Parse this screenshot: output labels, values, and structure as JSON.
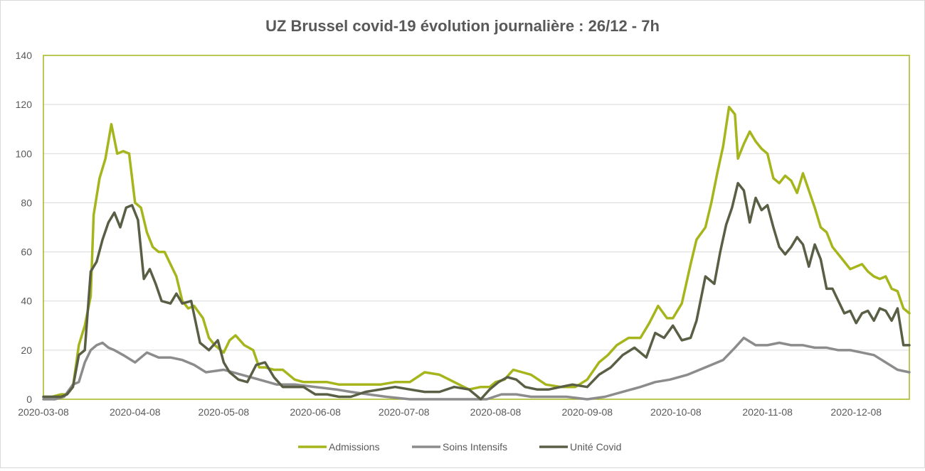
{
  "chart_data": {
    "type": "line",
    "title": "UZ Brussel covid-19 évolution journalière : 26/12 - 7h",
    "xlabel": "",
    "ylabel": "",
    "xlim": [
      "2020-03-08",
      "2020-12-26"
    ],
    "ylim": [
      0,
      140
    ],
    "y_ticks": [
      "0",
      "20",
      "40",
      "60",
      "80",
      "100",
      "120",
      "140"
    ],
    "x_ticks": [
      "2020-03-08",
      "2020-04-08",
      "2020-05-08",
      "2020-06-08",
      "2020-07-08",
      "2020-08-08",
      "2020-09-08",
      "2020-10-08",
      "2020-11-08",
      "2020-12-08"
    ],
    "grid": "horizontal",
    "legend_position": "bottom",
    "series": [
      {
        "name": "Admissions",
        "color": "#a5b51b",
        "x": [
          "2020-03-08",
          "2020-03-11",
          "2020-03-14",
          "2020-03-16",
          "2020-03-18",
          "2020-03-20",
          "2020-03-22",
          "2020-03-24",
          "2020-03-25",
          "2020-03-27",
          "2020-03-29",
          "2020-03-31",
          "2020-04-02",
          "2020-04-04",
          "2020-04-06",
          "2020-04-08",
          "2020-04-10",
          "2020-04-12",
          "2020-04-14",
          "2020-04-16",
          "2020-04-18",
          "2020-04-20",
          "2020-04-22",
          "2020-04-24",
          "2020-04-26",
          "2020-04-28",
          "2020-05-01",
          "2020-05-03",
          "2020-05-05",
          "2020-05-08",
          "2020-05-10",
          "2020-05-12",
          "2020-05-15",
          "2020-05-18",
          "2020-05-20",
          "2020-05-22",
          "2020-05-25",
          "2020-05-28",
          "2020-06-01",
          "2020-06-04",
          "2020-06-08",
          "2020-06-12",
          "2020-06-16",
          "2020-06-20",
          "2020-06-25",
          "2020-06-30",
          "2020-07-05",
          "2020-07-10",
          "2020-07-15",
          "2020-07-20",
          "2020-07-25",
          "2020-07-30",
          "2020-08-03",
          "2020-08-06",
          "2020-08-08",
          "2020-08-11",
          "2020-08-14",
          "2020-08-17",
          "2020-08-20",
          "2020-08-25",
          "2020-08-30",
          "2020-09-04",
          "2020-09-08",
          "2020-09-12",
          "2020-09-15",
          "2020-09-18",
          "2020-09-22",
          "2020-09-26",
          "2020-09-29",
          "2020-10-02",
          "2020-10-05",
          "2020-10-07",
          "2020-10-10",
          "2020-10-13",
          "2020-10-15",
          "2020-10-18",
          "2020-10-20",
          "2020-10-22",
          "2020-10-24",
          "2020-10-26",
          "2020-10-28",
          "2020-10-29",
          "2020-10-31",
          "2020-11-02",
          "2020-11-04",
          "2020-11-06",
          "2020-11-08",
          "2020-11-10",
          "2020-11-12",
          "2020-11-14",
          "2020-11-16",
          "2020-11-18",
          "2020-11-20",
          "2020-11-22",
          "2020-11-24",
          "2020-11-26",
          "2020-11-28",
          "2020-11-30",
          "2020-12-02",
          "2020-12-04",
          "2020-12-06",
          "2020-12-08",
          "2020-12-10",
          "2020-12-12",
          "2020-12-14",
          "2020-12-16",
          "2020-12-18",
          "2020-12-20",
          "2020-12-22",
          "2020-12-24",
          "2020-12-26"
        ],
        "values": [
          1,
          1,
          2,
          2,
          5,
          22,
          30,
          42,
          75,
          90,
          98,
          112,
          100,
          101,
          100,
          80,
          78,
          68,
          62,
          60,
          60,
          55,
          50,
          40,
          37,
          38,
          33,
          25,
          22,
          19,
          24,
          26,
          22,
          20,
          13,
          13,
          12,
          12,
          8,
          7,
          7,
          7,
          6,
          6,
          6,
          6,
          7,
          7,
          11,
          10,
          7,
          4,
          5,
          5,
          7,
          8,
          12,
          11,
          10,
          6,
          5,
          5,
          8,
          15,
          18,
          22,
          25,
          25,
          31,
          38,
          33,
          33,
          39,
          55,
          65,
          70,
          80,
          92,
          103,
          119,
          116,
          98,
          104,
          109,
          105,
          102,
          100,
          90,
          88,
          91,
          89,
          84,
          92,
          85,
          78,
          70,
          68,
          62,
          59,
          56,
          53,
          54,
          55,
          52,
          50,
          49,
          50,
          45,
          44,
          37,
          35
        ]
      },
      {
        "name": "Soins Intensifs",
        "color": "#8c8c8c",
        "x": [
          "2020-03-08",
          "2020-03-12",
          "2020-03-15",
          "2020-03-18",
          "2020-03-20",
          "2020-03-22",
          "2020-03-24",
          "2020-03-26",
          "2020-03-28",
          "2020-03-30",
          "2020-04-01",
          "2020-04-04",
          "2020-04-08",
          "2020-04-12",
          "2020-04-16",
          "2020-04-20",
          "2020-04-24",
          "2020-04-28",
          "2020-05-02",
          "2020-05-08",
          "2020-05-14",
          "2020-05-20",
          "2020-05-26",
          "2020-06-01",
          "2020-06-08",
          "2020-06-15",
          "2020-06-20",
          "2020-06-26",
          "2020-07-02",
          "2020-07-10",
          "2020-07-20",
          "2020-07-30",
          "2020-08-05",
          "2020-08-10",
          "2020-08-15",
          "2020-08-20",
          "2020-08-25",
          "2020-09-01",
          "2020-09-08",
          "2020-09-14",
          "2020-09-20",
          "2020-09-26",
          "2020-10-01",
          "2020-10-06",
          "2020-10-12",
          "2020-10-18",
          "2020-10-24",
          "2020-10-28",
          "2020-10-31",
          "2020-11-04",
          "2020-11-08",
          "2020-11-12",
          "2020-11-16",
          "2020-11-20",
          "2020-11-24",
          "2020-11-28",
          "2020-12-02",
          "2020-12-06",
          "2020-12-10",
          "2020-12-14",
          "2020-12-18",
          "2020-12-22",
          "2020-12-26"
        ],
        "values": [
          0,
          0,
          1,
          6,
          7,
          15,
          20,
          22,
          23,
          21,
          20,
          18,
          15,
          19,
          17,
          17,
          16,
          14,
          11,
          12,
          10,
          8,
          6,
          6,
          5,
          4,
          3,
          2,
          1,
          0,
          0,
          0,
          0,
          2,
          2,
          1,
          1,
          1,
          0,
          1,
          3,
          5,
          7,
          8,
          10,
          13,
          16,
          21,
          25,
          22,
          22,
          23,
          22,
          22,
          21,
          21,
          20,
          20,
          19,
          18,
          15,
          12,
          11
        ]
      },
      {
        "name": "Unité Covid",
        "color": "#595f45",
        "x": [
          "2020-03-08",
          "2020-03-11",
          "2020-03-14",
          "2020-03-16",
          "2020-03-18",
          "2020-03-20",
          "2020-03-22",
          "2020-03-24",
          "2020-03-26",
          "2020-03-28",
          "2020-03-30",
          "2020-04-01",
          "2020-04-03",
          "2020-04-05",
          "2020-04-07",
          "2020-04-09",
          "2020-04-11",
          "2020-04-13",
          "2020-04-15",
          "2020-04-17",
          "2020-04-20",
          "2020-04-22",
          "2020-04-24",
          "2020-04-27",
          "2020-04-30",
          "2020-05-03",
          "2020-05-06",
          "2020-05-08",
          "2020-05-10",
          "2020-05-13",
          "2020-05-16",
          "2020-05-19",
          "2020-05-22",
          "2020-05-25",
          "2020-05-28",
          "2020-06-01",
          "2020-06-04",
          "2020-06-08",
          "2020-06-12",
          "2020-06-16",
          "2020-06-20",
          "2020-06-25",
          "2020-06-30",
          "2020-07-05",
          "2020-07-10",
          "2020-07-15",
          "2020-07-20",
          "2020-07-25",
          "2020-07-30",
          "2020-08-03",
          "2020-08-06",
          "2020-08-09",
          "2020-08-12",
          "2020-08-15",
          "2020-08-18",
          "2020-08-22",
          "2020-08-26",
          "2020-08-30",
          "2020-09-03",
          "2020-09-08",
          "2020-09-12",
          "2020-09-16",
          "2020-09-20",
          "2020-09-24",
          "2020-09-28",
          "2020-10-01",
          "2020-10-04",
          "2020-10-07",
          "2020-10-10",
          "2020-10-13",
          "2020-10-15",
          "2020-10-18",
          "2020-10-21",
          "2020-10-23",
          "2020-10-25",
          "2020-10-27",
          "2020-10-29",
          "2020-10-31",
          "2020-11-02",
          "2020-11-04",
          "2020-11-06",
          "2020-11-08",
          "2020-11-10",
          "2020-11-12",
          "2020-11-14",
          "2020-11-16",
          "2020-11-18",
          "2020-11-20",
          "2020-11-22",
          "2020-11-24",
          "2020-11-26",
          "2020-11-28",
          "2020-11-30",
          "2020-12-02",
          "2020-12-04",
          "2020-12-06",
          "2020-12-08",
          "2020-12-10",
          "2020-12-12",
          "2020-12-14",
          "2020-12-16",
          "2020-12-18",
          "2020-12-20",
          "2020-12-22",
          "2020-12-24",
          "2020-12-26"
        ],
        "values": [
          1,
          1,
          1,
          2,
          5,
          18,
          20,
          52,
          56,
          65,
          72,
          76,
          70,
          78,
          79,
          73,
          49,
          53,
          47,
          40,
          39,
          43,
          39,
          40,
          23,
          20,
          24,
          15,
          11,
          8,
          7,
          14,
          15,
          9,
          5,
          5,
          5,
          2,
          2,
          1,
          1,
          3,
          4,
          5,
          4,
          3,
          3,
          5,
          4,
          0,
          4,
          7,
          9,
          8,
          5,
          4,
          4,
          5,
          6,
          5,
          10,
          13,
          18,
          21,
          17,
          27,
          25,
          30,
          24,
          25,
          32,
          50,
          47,
          60,
          71,
          78,
          88,
          85,
          72,
          82,
          77,
          79,
          70,
          62,
          59,
          62,
          66,
          63,
          54,
          63,
          57,
          45,
          45,
          40,
          35,
          36,
          31,
          35,
          36,
          32,
          37,
          36,
          32,
          37,
          22,
          22
        ]
      }
    ]
  }
}
